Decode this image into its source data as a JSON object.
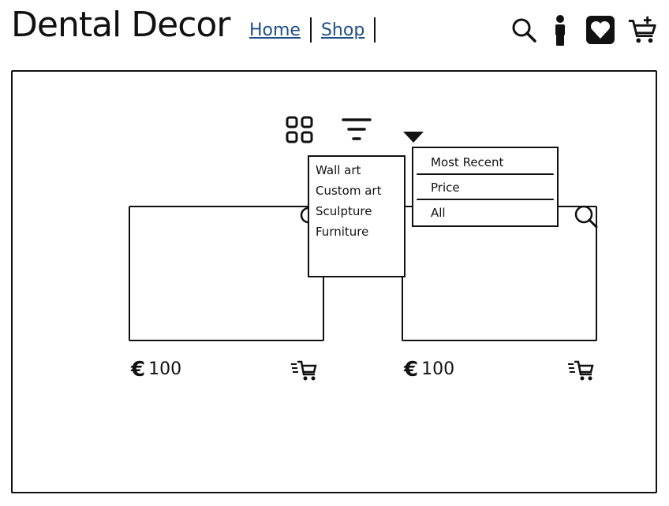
{
  "header": {
    "brand": "Dental Decor",
    "nav": [
      {
        "label": "Home"
      },
      {
        "label": "Shop"
      }
    ],
    "icons": [
      "search-icon",
      "account-icon",
      "wishlist-heart-icon",
      "add-to-cart-icon"
    ]
  },
  "toolbar": {
    "icons": [
      "grid-view-icon",
      "filter-icon",
      "dropdown-arrow-icon"
    ]
  },
  "categories_menu": {
    "items": [
      "Wall art",
      "Custom art",
      "Sculpture",
      "Furniture"
    ]
  },
  "sort_menu": {
    "items": [
      "Most Recent",
      "Price",
      "All"
    ]
  },
  "products": [
    {
      "currency": "€",
      "price": "100"
    },
    {
      "currency": "€",
      "price": "100"
    }
  ]
}
